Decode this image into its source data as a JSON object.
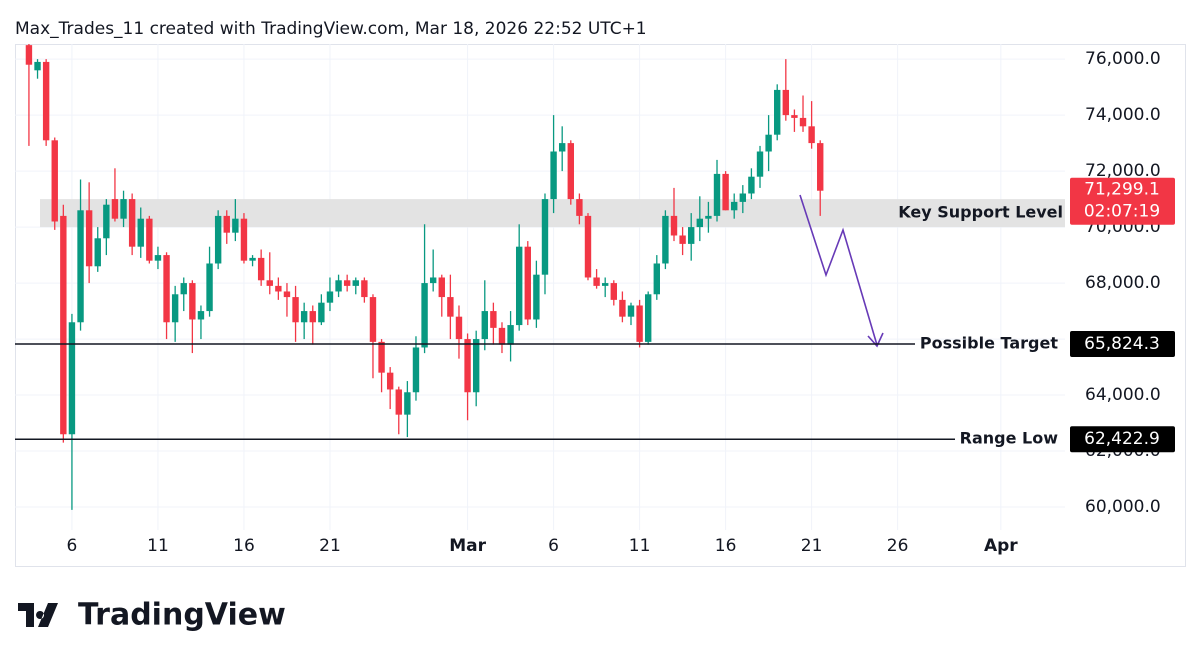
{
  "header": "Max_Trades_11 created with TradingView.com, Mar 18, 2026 22:52 UTC+1",
  "footer": {
    "brand": "TradingView"
  },
  "chart_data": {
    "type": "candlestick",
    "up_color": "#089981",
    "down_color": "#f23645",
    "grid": true,
    "xlim": [
      2.69,
      63.73
    ],
    "ylim": [
      59180,
      76540
    ],
    "xticks": [
      6,
      11,
      16,
      21,
      {
        "value": 29,
        "label": "Mar"
      },
      {
        "value": 34,
        "label": "6"
      },
      {
        "value": 39,
        "label": "11"
      },
      {
        "value": 44,
        "label": "16"
      },
      {
        "value": 49,
        "label": "21"
      },
      {
        "value": 54,
        "label": "26"
      },
      {
        "value": 60,
        "label": "Apr"
      }
    ],
    "yticks": [
      {
        "value": 60000,
        "label": "60,000.0"
      },
      {
        "value": 62000,
        "label": "62,000.0"
      },
      {
        "value": 64000,
        "label": "64,000.0"
      },
      {
        "value": 66000,
        "label": "66,000.0"
      },
      {
        "value": 68000,
        "label": "68,000.0"
      },
      {
        "value": 70000,
        "label": "70,000.0"
      },
      {
        "value": 72000,
        "label": "72,000.0"
      },
      {
        "value": 74000,
        "label": "74,000.0"
      },
      {
        "value": 76000,
        "label": "76,000.0"
      }
    ],
    "x": [
      3.5,
      4,
      4.5,
      5,
      5.5,
      6,
      6.5,
      7,
      7.5,
      8,
      8.5,
      9,
      9.5,
      10,
      10.5,
      11,
      11.5,
      12,
      12.5,
      13,
      13.5,
      14,
      14.5,
      15,
      15.5,
      16,
      16.5,
      17,
      17.5,
      18,
      18.5,
      19,
      19.5,
      20,
      20.5,
      21,
      21.5,
      22,
      22.5,
      23,
      23.5,
      24,
      24.5,
      25,
      25.5,
      26,
      26.5,
      27,
      27.5,
      28,
      28.5,
      29,
      29.5,
      30,
      30.5,
      31,
      31.5,
      32,
      32.5,
      33,
      33.5,
      34,
      34.5,
      35,
      35.5,
      36,
      36.5,
      37,
      37.5,
      38,
      38.5,
      39,
      39.5,
      40,
      40.5,
      41,
      41.5,
      42,
      42.5,
      43,
      43.5,
      44,
      44.5,
      45,
      45.5,
      46,
      46.5,
      47,
      47.5,
      48,
      48.5,
      49,
      49.5
    ],
    "open": [
      76500,
      75600,
      75900,
      73100,
      70400,
      62600,
      66600,
      70600,
      68600,
      69600,
      71000,
      70300,
      71000,
      69300,
      70300,
      68800,
      69000,
      66600,
      67600,
      68000,
      66700,
      67000,
      68700,
      70400,
      69800,
      70300,
      68800,
      68900,
      68100,
      67900,
      67700,
      67500,
      66600,
      67000,
      66600,
      67300,
      67700,
      68100,
      67900,
      68100,
      67500,
      65900,
      64800,
      64200,
      63300,
      64100,
      65700,
      68000,
      68200,
      67500,
      66800,
      66000,
      64100,
      66000,
      67000,
      66400,
      65800,
      66500,
      69300,
      66700,
      68300,
      71000,
      72700,
      73000,
      71000,
      70400,
      68200,
      67900,
      68000,
      67400,
      66800,
      67200,
      65900,
      67600,
      68700,
      70400,
      69700,
      69400,
      70000,
      70300,
      70400,
      71900,
      70600,
      70900,
      71200,
      71800,
      72700,
      73300,
      74900,
      74000,
      73900,
      73600,
      73000
    ],
    "high": [
      76540,
      76000,
      76000,
      73200,
      70800,
      66900,
      71700,
      71600,
      70000,
      71000,
      72100,
      71300,
      71200,
      70700,
      70400,
      69300,
      69100,
      67900,
      68200,
      68100,
      67200,
      69300,
      70600,
      70600,
      71000,
      70500,
      69000,
      69200,
      69100,
      68200,
      68000,
      67900,
      67300,
      67200,
      67600,
      68200,
      68300,
      68300,
      68200,
      68200,
      67600,
      66000,
      65000,
      64300,
      64500,
      66100,
      70100,
      69200,
      68300,
      68300,
      67200,
      66200,
      66300,
      68100,
      67300,
      66600,
      67000,
      70100,
      69500,
      68800,
      71200,
      74000,
      73600,
      73100,
      71200,
      70500,
      68500,
      68200,
      68100,
      67700,
      67300,
      67400,
      67700,
      69000,
      70600,
      71400,
      70000,
      70500,
      71100,
      70900,
      72400,
      72000,
      71200,
      71500,
      72100,
      72900,
      74000,
      75100,
      76000,
      74200,
      74700,
      74500,
      73100
    ],
    "low": [
      72900,
      75300,
      72900,
      69900,
      62300,
      59900,
      66300,
      68000,
      68400,
      69000,
      70200,
      70000,
      69000,
      68900,
      68700,
      68500,
      66000,
      65900,
      67000,
      65500,
      66000,
      66800,
      68500,
      69400,
      69500,
      68700,
      68600,
      67900,
      67600,
      67400,
      66800,
      65900,
      66000,
      65800,
      66500,
      67000,
      67500,
      67700,
      67600,
      67300,
      64600,
      64100,
      63500,
      62600,
      62500,
      63800,
      65500,
      67700,
      66800,
      66000,
      65300,
      63100,
      63600,
      65600,
      65800,
      65500,
      65200,
      66300,
      66500,
      66400,
      67600,
      70500,
      72000,
      70800,
      70100,
      68100,
      67800,
      67500,
      67200,
      66600,
      66500,
      65700,
      65800,
      67400,
      68500,
      69500,
      69000,
      68800,
      69500,
      69800,
      70200,
      70600,
      70300,
      70500,
      71000,
      71400,
      72000,
      73100,
      73800,
      73400,
      73400,
      72800,
      70400
    ],
    "close": [
      75800,
      75900,
      73100,
      70200,
      62600,
      66600,
      70600,
      68600,
      69600,
      70800,
      70300,
      71000,
      69300,
      70300,
      68800,
      69000,
      66600,
      67600,
      68000,
      66700,
      67000,
      68700,
      70400,
      69800,
      70300,
      68800,
      68900,
      68100,
      67900,
      67700,
      67500,
      66600,
      67000,
      66600,
      67300,
      67700,
      68100,
      67900,
      68100,
      67500,
      65900,
      64800,
      64200,
      63300,
      64100,
      65700,
      68000,
      68200,
      67500,
      66800,
      66000,
      64100,
      66000,
      67000,
      66400,
      65800,
      66500,
      69300,
      66700,
      68300,
      71000,
      72700,
      73000,
      71000,
      70400,
      68200,
      67900,
      68000,
      67400,
      66800,
      67200,
      65900,
      67600,
      68700,
      70400,
      69700,
      69400,
      70000,
      70300,
      70400,
      71900,
      70600,
      70900,
      71200,
      71800,
      72700,
      73300,
      74900,
      74000,
      73900,
      73600,
      73000,
      71299.1
    ],
    "zone": {
      "label": "Key Support Level",
      "from": 70000,
      "to": 71000
    },
    "levels": [
      {
        "label": "Possible Target",
        "value": 65824.3,
        "value_label": "65,824.3"
      },
      {
        "label": "Range Low",
        "value": 62422.9,
        "value_label": "62,422.9"
      }
    ],
    "last_price": {
      "value": 71299.1,
      "label": "71,299.1",
      "countdown": "02:07:19"
    }
  }
}
